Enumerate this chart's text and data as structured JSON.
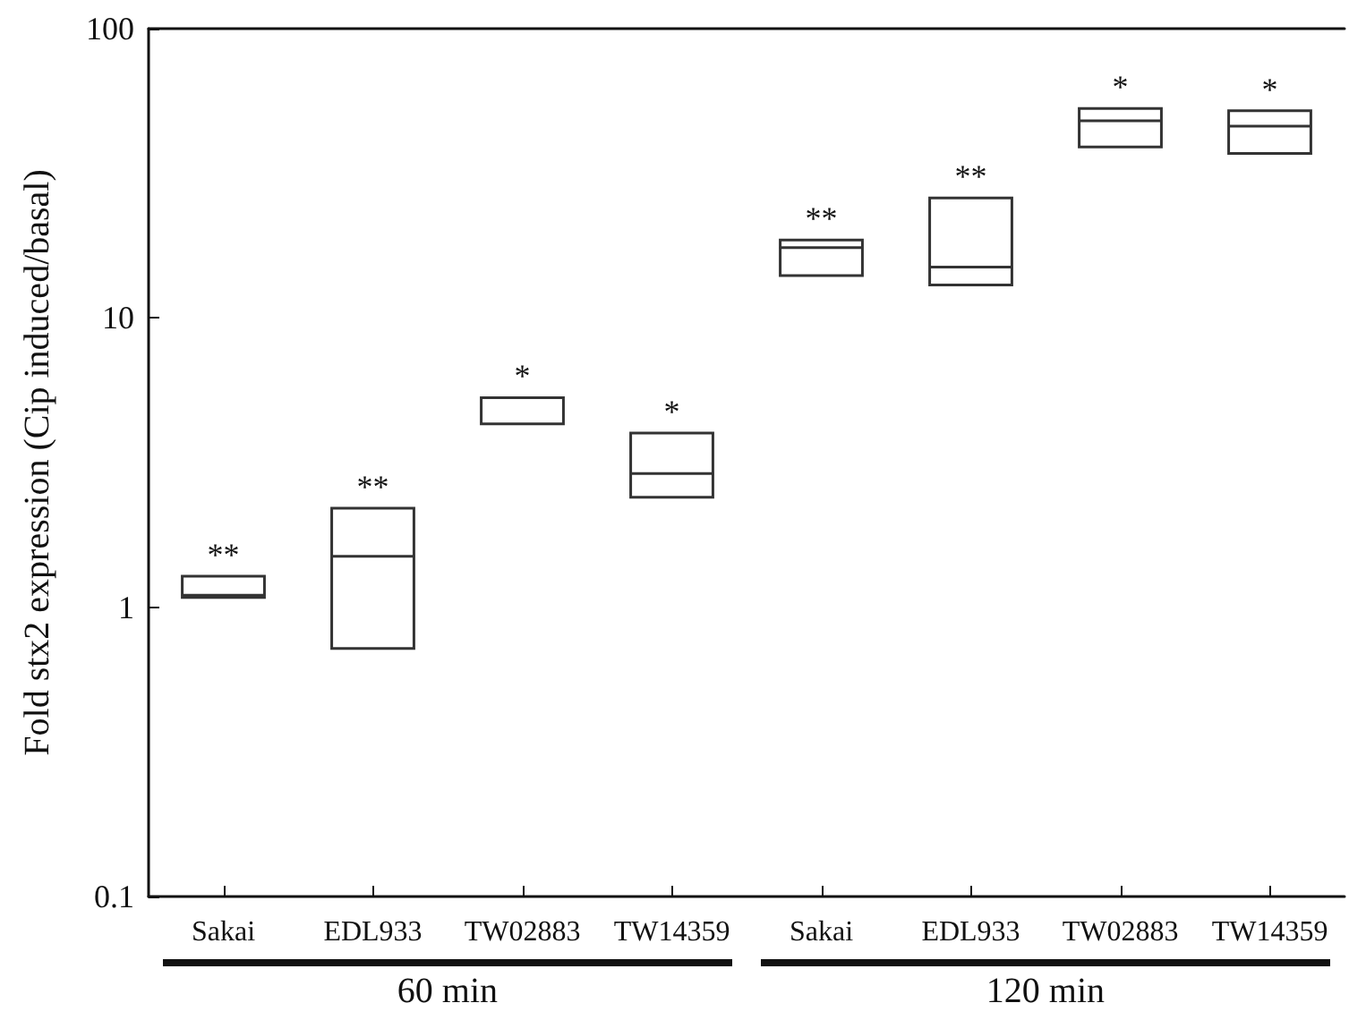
{
  "chart_data": {
    "type": "box",
    "ylabel": "Fold stx2 expression (Cip induced/basal)",
    "categories": [
      "Sakai",
      "EDL933",
      "TW02883",
      "TW14359",
      "Sakai",
      "EDL933",
      "TW02883",
      "TW14359"
    ],
    "boxes": [
      {
        "low": 1.08,
        "q1": 1.08,
        "median": 1.1,
        "q3": 1.28,
        "high": 1.28
      },
      {
        "low": 0.72,
        "q1": 0.72,
        "median": 1.5,
        "q3": 2.2,
        "high": 2.2
      },
      {
        "low": 4.3,
        "q1": 4.3,
        "median": 4.3,
        "q3": 5.3,
        "high": 5.3
      },
      {
        "low": 2.4,
        "q1": 2.4,
        "median": 2.9,
        "q3": 4.0,
        "high": 4.0
      },
      {
        "low": 14,
        "q1": 14,
        "median": 17.5,
        "q3": 18.6,
        "high": 18.6
      },
      {
        "low": 13,
        "q1": 13,
        "median": 15,
        "q3": 26,
        "high": 26
      },
      {
        "low": 39,
        "q1": 39,
        "median": 48,
        "q3": 53,
        "high": 53
      },
      {
        "low": 37,
        "q1": 37,
        "median": 46,
        "q3": 52,
        "high": 52
      }
    ],
    "color": "#333333",
    "log": "y",
    "ylim": [
      0.1,
      100
    ],
    "yticks": [
      0.1,
      1,
      10,
      100
    ],
    "grid": false,
    "annotations": [
      "**",
      "**",
      "*",
      "*",
      "**",
      "**",
      "*",
      "*",
      "60 min",
      "120 min"
    ]
  }
}
